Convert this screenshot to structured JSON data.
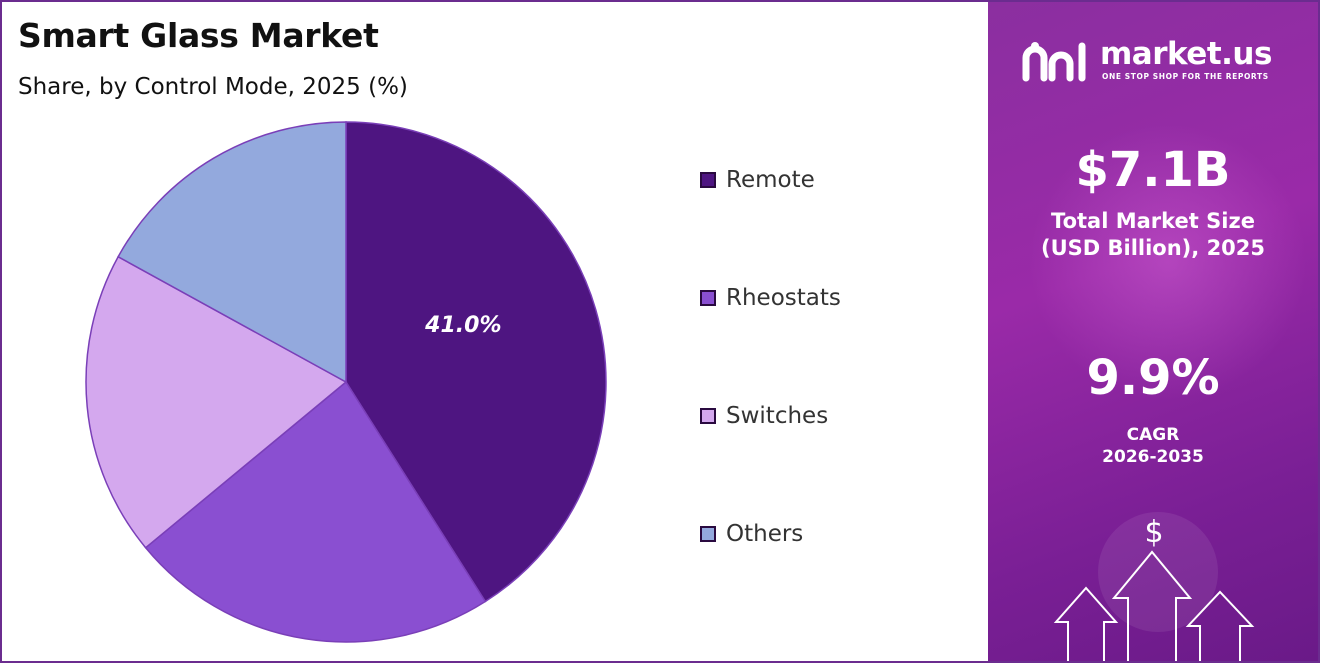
{
  "header": {
    "title": "Smart Glass Market",
    "subtitle": "Share, by Control Mode, 2025 (%)"
  },
  "chart_data": {
    "type": "pie",
    "title": "Smart Glass Market",
    "subtitle": "Share, by Control Mode, 2025 (%)",
    "categories": [
      "Remote",
      "Rheostats",
      "Switches",
      "Others"
    ],
    "values": [
      41.0,
      23.0,
      19.0,
      17.0
    ],
    "colors": [
      "#4e1581",
      "#8a4fd1",
      "#d4a8ee",
      "#93a9dd"
    ],
    "labels_shown": [
      "41.0%",
      "",
      "",
      ""
    ],
    "legend": "right"
  },
  "sidebar": {
    "brand": "market.us",
    "tagline": "ONE STOP SHOP FOR THE REPORTS",
    "market_size_value": "$7.1B",
    "market_size_label_line1": "Total Market Size",
    "market_size_label_line2": "(USD Billion), 2025",
    "cagr_value": "9.9%",
    "cagr_label_line1": "CAGR",
    "cagr_label_line2": "2026-2035",
    "dollar_glyph": "$"
  }
}
